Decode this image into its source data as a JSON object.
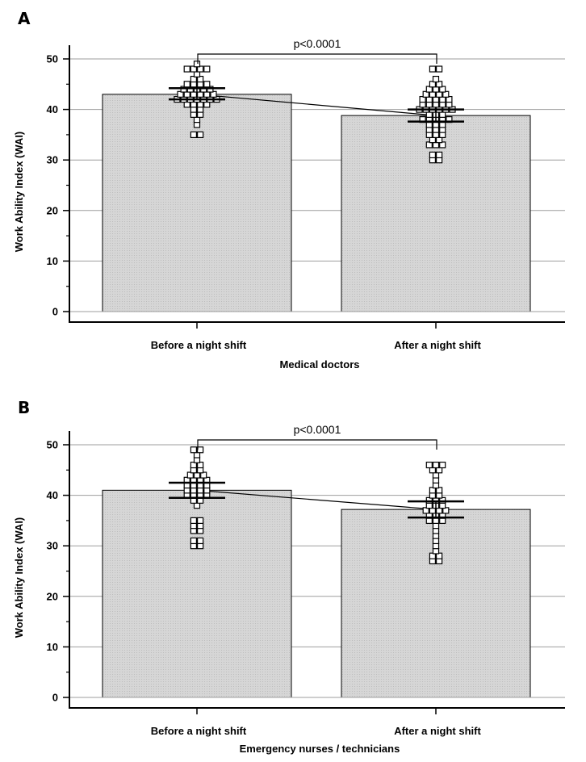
{
  "chart_data": [
    {
      "panel": "A",
      "type": "bar",
      "xlabel": "Medical doctors",
      "ylabel": "Work Ability Index (WAI)",
      "categories": [
        "Before a night shift",
        "After a night shift"
      ],
      "values": [
        43.0,
        38.8
      ],
      "ci": [
        [
          42.0,
          44.2
        ],
        [
          37.6,
          40.0
        ]
      ],
      "ylim": [
        0,
        50
      ],
      "yticks": [
        "0",
        "10",
        "20",
        "30",
        "40",
        "50"
      ],
      "grid": true,
      "significance": "p<0.0001",
      "points": [
        [
          49,
          48,
          48,
          48,
          48,
          47,
          46,
          46,
          45,
          45,
          45,
          45,
          44,
          44,
          44,
          44,
          44,
          43,
          43,
          43,
          43,
          43,
          43,
          42,
          42,
          42,
          42,
          42,
          42,
          42,
          41,
          41,
          41,
          41,
          40,
          40,
          39,
          39,
          38,
          37,
          35,
          35
        ],
        [
          48,
          48,
          46,
          45,
          45,
          44,
          44,
          44,
          43,
          43,
          43,
          43,
          42,
          42,
          42,
          42,
          42,
          41,
          41,
          41,
          41,
          41,
          40,
          40,
          40,
          40,
          40,
          40,
          39,
          39,
          39,
          38,
          38,
          38,
          38,
          38,
          37,
          37,
          37,
          36,
          36,
          36,
          35,
          35,
          35,
          34,
          34,
          33,
          33,
          33,
          31,
          31,
          30,
          30
        ]
      ]
    },
    {
      "panel": "B",
      "type": "bar",
      "xlabel": "Emergency nurses / technicians",
      "ylabel": "Work Ability Index (WAI)",
      "categories": [
        "Before a night shift",
        "After a night shift"
      ],
      "values": [
        41.0,
        37.2
      ],
      "ci": [
        [
          39.5,
          42.5
        ],
        [
          35.6,
          38.8
        ]
      ],
      "ylim": [
        0,
        50
      ],
      "yticks": [
        "0",
        "10",
        "20",
        "30",
        "40",
        "50"
      ],
      "grid": true,
      "significance": "p<0.0001",
      "points": [
        [
          49,
          49,
          48,
          47,
          46,
          46,
          45,
          45,
          44,
          44,
          44,
          43,
          43,
          43,
          43,
          42,
          42,
          42,
          42,
          41,
          41,
          41,
          41,
          40,
          40,
          40,
          40,
          39,
          39,
          38,
          35,
          35,
          34,
          34,
          33,
          33,
          31,
          31,
          30,
          30
        ],
        [
          46,
          46,
          46,
          45,
          45,
          44,
          43,
          42,
          41,
          41,
          40,
          40,
          39,
          39,
          39,
          38,
          38,
          38,
          37,
          37,
          37,
          37,
          36,
          36,
          36,
          35,
          35,
          35,
          34,
          33,
          32,
          31,
          30,
          29,
          28,
          28,
          27,
          27
        ]
      ]
    }
  ]
}
